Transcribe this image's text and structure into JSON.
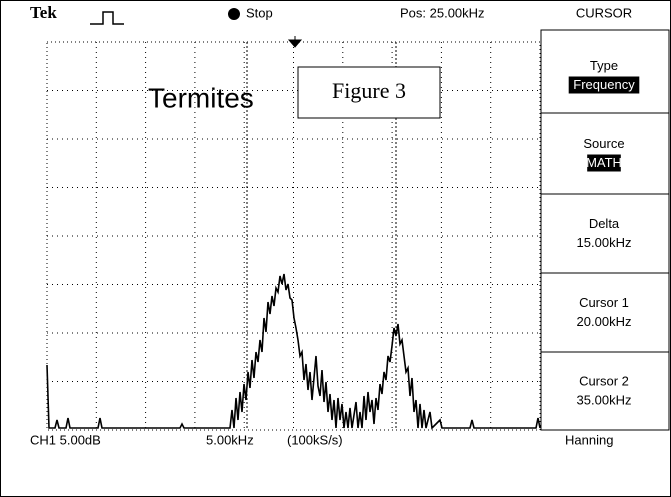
{
  "header": {
    "brand": "Tek",
    "status": "Stop",
    "position": "Pos: 25.00kHz",
    "menu_title": "CURSOR"
  },
  "menu": [
    {
      "label": "Type",
      "value": "Frequency"
    },
    {
      "label": "Source",
      "value": "MATH"
    },
    {
      "label": "Delta",
      "value": "15.00kHz"
    },
    {
      "label": "Cursor 1",
      "value": "20.00kHz"
    },
    {
      "label": "Cursor 2",
      "value": "35.00kHz"
    }
  ],
  "footer": {
    "channel": "CH1 5.00dB",
    "timebase": "5.00kHz",
    "sample_rate": "(100kS/s)",
    "window": "Hanning"
  },
  "annotations": {
    "overlay": "Termites",
    "figure_label": "Figure 3"
  }
}
